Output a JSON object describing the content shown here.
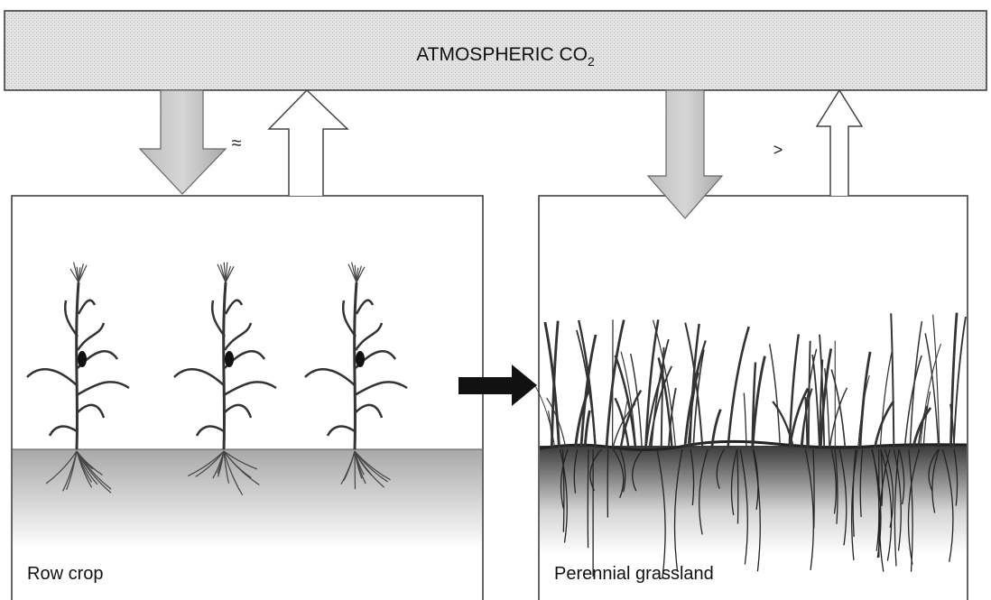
{
  "header": {
    "title": "ATMOSPHERIC CO",
    "title_subscript": "2"
  },
  "panels": [
    {
      "label": "Row crop",
      "flux_relation": "≈"
    },
    {
      "label": "Perennial grassland",
      "flux_relation": ">"
    }
  ]
}
